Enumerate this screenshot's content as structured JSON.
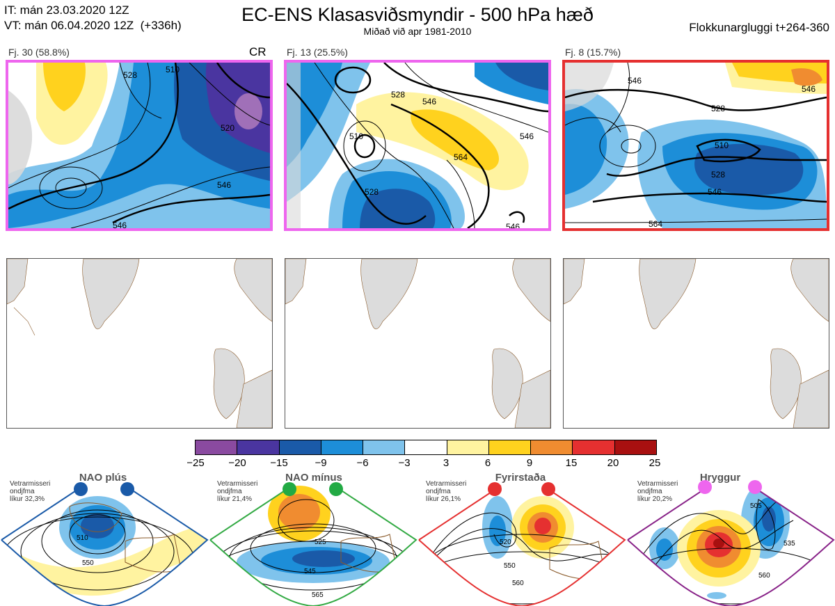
{
  "header": {
    "line1": "IT: mán 23.03.2020 12Z",
    "line2": "VT: mán 06.04.2020 12Z  (+336h)",
    "title": "EC-ENS Klasasviðsmyndir - 500 hPa hæð",
    "subtitle": "Miðað við apr 1981-2010",
    "window": "Flokkunargluggi t+264-360"
  },
  "clusters": [
    {
      "label": "Fj. 30 (58.8%)",
      "tag": "CR",
      "border_color": "#ee66ee",
      "contour_labels": [
        "528",
        "510",
        "520",
        "546",
        "546"
      ]
    },
    {
      "label": "Fj. 13 (25.5%)",
      "tag": "",
      "border_color": "#ee66ee",
      "contour_labels": [
        "510",
        "528",
        "546",
        "528",
        "546",
        "564",
        "546"
      ]
    },
    {
      "label": "Fj.  8 (15.7%)",
      "tag": "",
      "border_color": "#ee3333",
      "contour_labels": [
        "546",
        "528",
        "510",
        "528",
        "546",
        "564",
        "546"
      ]
    }
  ],
  "colorbar": {
    "colors": [
      "#8a4aa0",
      "#4a35a0",
      "#1a5aa8",
      "#1d8ed8",
      "#7fc3ec",
      "#ffffff",
      "#fff3a0",
      "#ffd21e",
      "#f08c30",
      "#e53030",
      "#a81010"
    ],
    "ticks": [
      "−25",
      "−20",
      "−15",
      "−9",
      "−6",
      "−3",
      "3",
      "6",
      "9",
      "15",
      "20",
      "25"
    ]
  },
  "regimes": [
    {
      "title": "NAO plús",
      "note_lines": "Vetrarmisseri\nondjfma\nlíkur 32,3%",
      "dot_color": "#1a5aa8",
      "border_color": "#1a5aa8",
      "contour_labels": [
        "510",
        "550"
      ]
    },
    {
      "title": "NAO mínus",
      "note_lines": "Vetrarmisseri\nondjfma\nlíkur 21,4%",
      "dot_color": "#22aa44",
      "border_color": "#33aa44",
      "contour_labels": [
        "525",
        "545",
        "565"
      ]
    },
    {
      "title": "Fyrirstaða",
      "note_lines": "Vetrarmisseri\nondjfma\nlíkur 26,1%",
      "dot_color": "#e53030",
      "border_color": "#e53030",
      "contour_labels": [
        "520",
        "550",
        "560"
      ]
    },
    {
      "title": "Hryggur",
      "note_lines": "Vetrarmisseri\nondjfma\nlíkur 20,2%",
      "dot_color": "#ee66ee",
      "border_color": "#882288",
      "contour_labels": [
        "505",
        "535",
        "560"
      ]
    }
  ]
}
